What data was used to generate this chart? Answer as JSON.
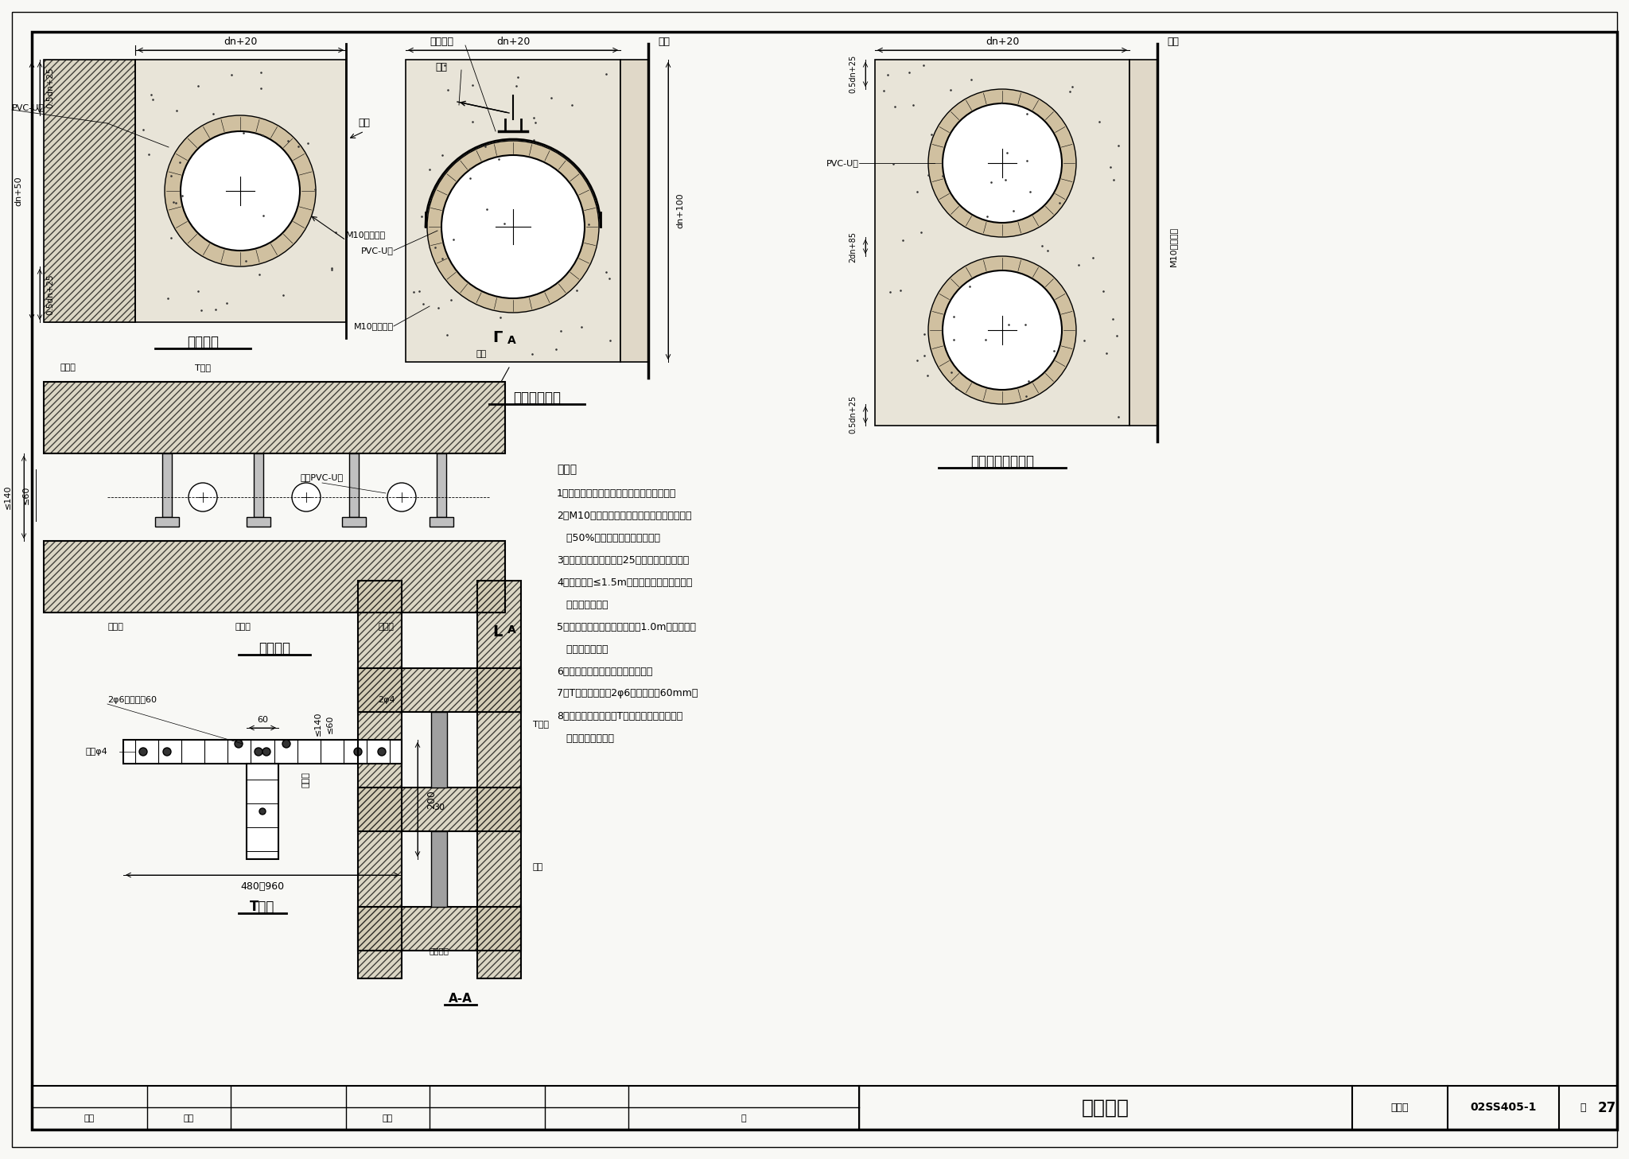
{
  "bg_color": "#ffffff",
  "title_main": "管道暗装",
  "title_code": "02SS405-1",
  "page_num": "27",
  "s1_label": "嵌墙安装",
  "s2_label": "嵌墙管卡安装",
  "s3_label": "双管共槽嵌墙安装",
  "s4_label": "管尼安装",
  "s5_label": "T型板",
  "s6_label": "A-A",
  "notes_title": "说明：",
  "note1": "1．管道嵌实应在隐蔽工程验收完成后进行。",
  "note2": "2．M10水泥砂浆应分两次嵌实，先嵌实管件待",
  "note2b": "   达50%强度后再全部嵌实填平。",
  "note3": "3．嵌墙管道管径不得＞25，墙体应为实心墙。",
  "note4": "4．管卡间距≤1.5m，管道转弯及穿墙三通处",
  "note4b": "   必须设置管卡。",
  "note5": "5．楼管嵌实心墙开槽长度超过1.0m时，应征得",
  "note5b": "   土建专业同意。",
  "note6": "6．墙槽槽底应平整，不得有尖角。",
  "note7": "7．T型板楔块其中2φ6比其它短等60mm。",
  "note8": "8．管尼可由夹壁墙、T型板、隔墙组成，做法",
  "note8b": "   由土建专业设计。"
}
